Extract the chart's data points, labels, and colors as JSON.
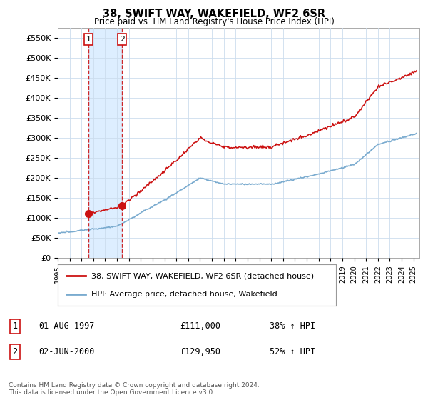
{
  "title": "38, SWIFT WAY, WAKEFIELD, WF2 6SR",
  "subtitle": "Price paid vs. HM Land Registry's House Price Index (HPI)",
  "ylabel_ticks": [
    "£0",
    "£50K",
    "£100K",
    "£150K",
    "£200K",
    "£250K",
    "£300K",
    "£350K",
    "£400K",
    "£450K",
    "£500K",
    "£550K"
  ],
  "ytick_values": [
    0,
    50000,
    100000,
    150000,
    200000,
    250000,
    300000,
    350000,
    400000,
    450000,
    500000,
    550000
  ],
  "ylim": [
    0,
    575000
  ],
  "xlim_start": 1995.0,
  "xlim_end": 2025.5,
  "hpi_color": "#7aabcf",
  "price_color": "#cc1111",
  "vline_color": "#cc1111",
  "marker_color": "#cc1111",
  "shading_color": "#ddeeff",
  "transactions": [
    {
      "year": 1997.583,
      "price": 111000,
      "label": "1"
    },
    {
      "year": 2000.416,
      "price": 129950,
      "label": "2"
    }
  ],
  "legend_price_label": "38, SWIFT WAY, WAKEFIELD, WF2 6SR (detached house)",
  "legend_hpi_label": "HPI: Average price, detached house, Wakefield",
  "table_rows": [
    {
      "num": "1",
      "date": "01-AUG-1997",
      "price": "£111,000",
      "hpi": "38% ↑ HPI"
    },
    {
      "num": "2",
      "date": "02-JUN-2000",
      "price": "£129,950",
      "hpi": "52% ↑ HPI"
    }
  ],
  "copyright_text": "Contains HM Land Registry data © Crown copyright and database right 2024.\nThis data is licensed under the Open Government Licence v3.0.",
  "background_color": "#ffffff",
  "grid_color": "#ccddee"
}
